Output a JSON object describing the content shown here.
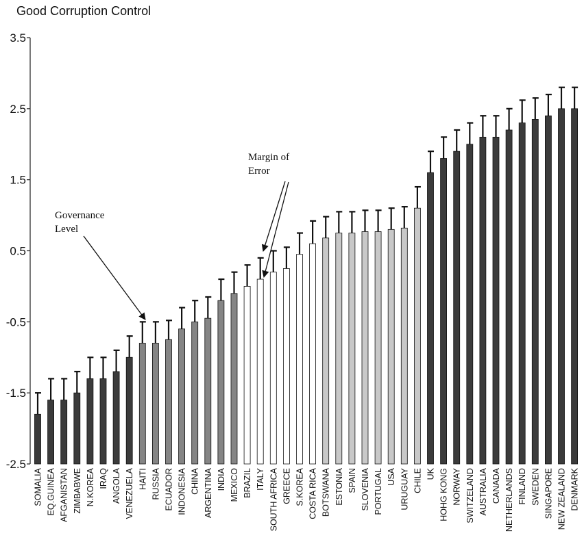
{
  "chart_data": {
    "type": "bar",
    "title": "Good Corruption Control",
    "ylim": [
      -2.5,
      3.5
    ],
    "yticks": [
      "3.5",
      "2.5",
      "1.5",
      "0.5",
      "-0.5",
      "-1.5",
      "-2.5"
    ],
    "ytick_values": [
      3.5,
      2.5,
      1.5,
      0.5,
      -0.5,
      -1.5,
      -2.5
    ],
    "grid": false,
    "colors": {
      "dark": "#3b3b3b",
      "medium": "#858585",
      "light": "#c8c8c8",
      "white": "#ffffff",
      "border": "#111111"
    },
    "categories": [
      "SOMALIA",
      "EQ.GUINEA",
      "AFGANISTAN",
      "ZIMBABWE",
      "N.KOREA",
      "IRAQ",
      "ANGOLA",
      "VENEZUELA",
      "HAITI",
      "RUSSIA",
      "ECUADOR",
      "INDONESIA",
      "CHINA",
      "ARGENTINA",
      "INDIA",
      "MEXICO",
      "BRAZIL",
      "ITALY",
      "SOUTH AFRICA",
      "GREECE",
      "S.KOREA",
      "COSTA RICA",
      "BOTSWANA",
      "ESTONIA",
      "SPAIN",
      "SLOVENIA",
      "PORTUGAL",
      "USA",
      "URUGUAY",
      "CHILE",
      "UK",
      "HOHG KONG",
      "NORWAY",
      "SWITZELAND",
      "AUSTRALIA",
      "CANADA",
      "NETHERLANDS",
      "FINLAND",
      "SWEDEN",
      "SINGAPORE",
      "NEW ZEALAND",
      "DENMARK"
    ],
    "values": [
      -1.8,
      -1.6,
      -1.6,
      -1.5,
      -1.3,
      -1.3,
      -1.2,
      -1.0,
      -0.8,
      -0.8,
      -0.75,
      -0.6,
      -0.5,
      -0.45,
      -0.2,
      -0.1,
      0.0,
      0.1,
      0.2,
      0.25,
      0.45,
      0.6,
      0.68,
      0.75,
      0.75,
      0.77,
      0.77,
      0.8,
      0.82,
      1.1,
      1.6,
      1.8,
      1.9,
      2.0,
      2.1,
      2.1,
      2.2,
      2.3,
      2.35,
      2.4,
      2.5,
      2.5
    ],
    "error": [
      0.3,
      0.3,
      0.3,
      0.3,
      0.3,
      0.3,
      0.3,
      0.3,
      0.3,
      0.3,
      0.27,
      0.3,
      0.3,
      0.3,
      0.3,
      0.3,
      0.3,
      0.3,
      0.3,
      0.3,
      0.3,
      0.32,
      0.3,
      0.3,
      0.3,
      0.3,
      0.3,
      0.3,
      0.3,
      0.3,
      0.3,
      0.3,
      0.3,
      0.3,
      0.3,
      0.3,
      0.3,
      0.32,
      0.3,
      0.3,
      0.3,
      0.3
    ],
    "shades": [
      "dark",
      "dark",
      "dark",
      "dark",
      "dark",
      "dark",
      "dark",
      "dark",
      "medium",
      "medium",
      "medium",
      "medium",
      "medium",
      "medium",
      "medium",
      "medium",
      "white",
      "white",
      "white",
      "white",
      "white",
      "white",
      "light",
      "light",
      "light",
      "light",
      "light",
      "light",
      "light",
      "light",
      "dark",
      "dark",
      "dark",
      "dark",
      "dark",
      "dark",
      "dark",
      "dark",
      "dark",
      "dark",
      "dark",
      "dark"
    ],
    "annotations": [
      {
        "text_lines": [
          "Governance",
          "Level"
        ]
      },
      {
        "text_lines": [
          "Margin of",
          "Error"
        ]
      }
    ]
  }
}
